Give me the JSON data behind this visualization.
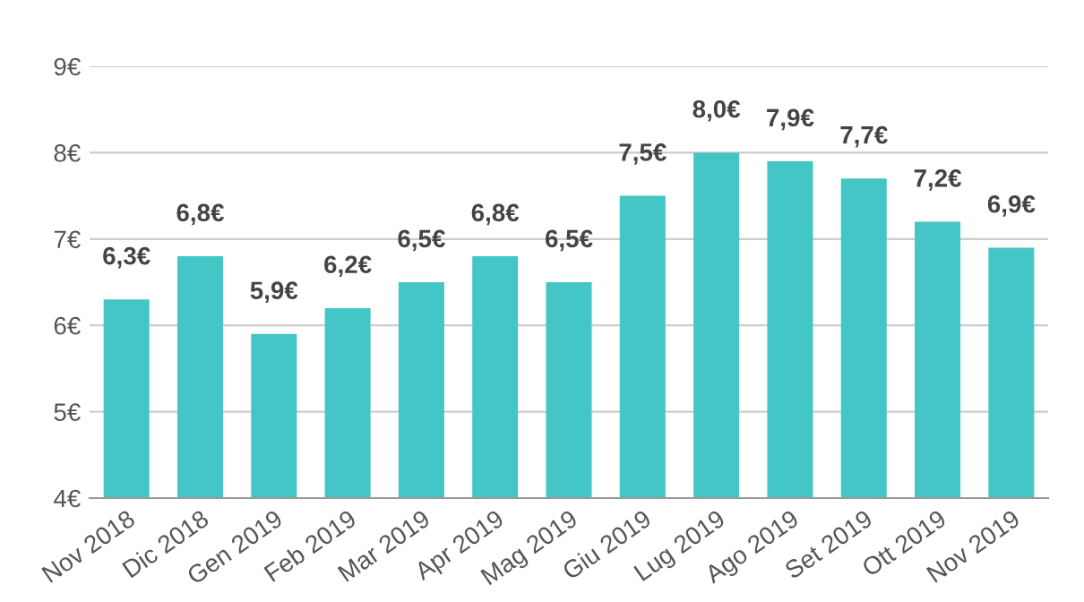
{
  "chart_data": {
    "type": "bar",
    "categories": [
      "Nov 2018",
      "Dic 2018",
      "Gen 2019",
      "Feb 2019",
      "Mar 2019",
      "Apr 2019",
      "Mag 2019",
      "Giu 2019",
      "Lug 2019",
      "Ago 2019",
      "Set 2019",
      "Ott 2019",
      "Nov 2019"
    ],
    "values": [
      6.3,
      6.8,
      5.9,
      6.2,
      6.5,
      6.8,
      6.5,
      7.5,
      8.0,
      7.9,
      7.7,
      7.2,
      6.9
    ],
    "value_labels": [
      "6,3€",
      "6,8€",
      "5,9€",
      "6,2€",
      "6,5€",
      "6,8€",
      "6,5€",
      "7,5€",
      "8,0€",
      "7,9€",
      "7,7€",
      "7,2€",
      "6,9€"
    ],
    "color": "#45c6c6",
    "ylim": [
      4,
      9
    ],
    "yticks": [
      {
        "value": 4,
        "label": "4€"
      },
      {
        "value": 5,
        "label": "5€"
      },
      {
        "value": 6,
        "label": "6€"
      },
      {
        "value": 7,
        "label": "7€"
      },
      {
        "value": 8,
        "label": "8€"
      },
      {
        "value": 9,
        "label": "9€"
      }
    ],
    "grid": "y",
    "legend": false
  }
}
